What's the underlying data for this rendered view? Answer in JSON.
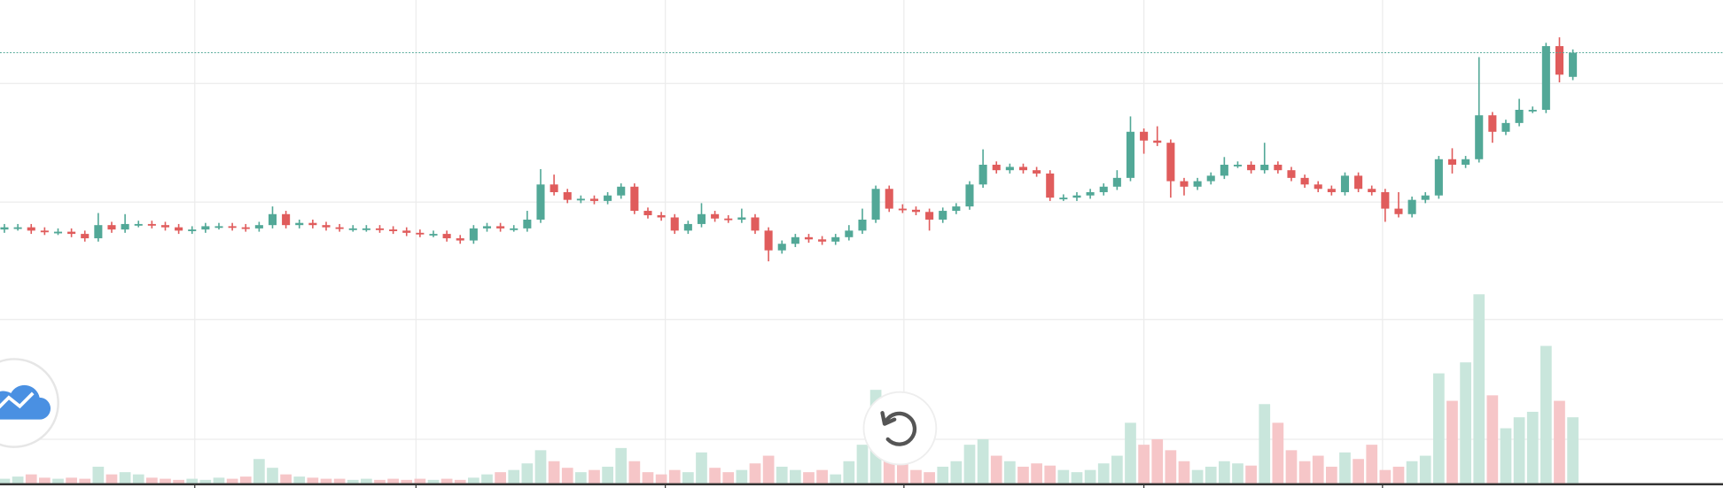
{
  "chart_data": {
    "type": "candlestick",
    "xlim": [
      -0.33,
      128.2
    ],
    "ylim": [
      -4.4,
      440
    ],
    "xticks": [
      14.2,
      30.7,
      49.3,
      67.1,
      85,
      102.8
    ],
    "yticks": [
      40,
      149,
      256,
      364
    ],
    "grid": true,
    "up_color": "#52a897",
    "down_color": "#e05c5c",
    "volume_up_color": "#c9e6dc",
    "volume_down_color": "#f6c6c8",
    "open": [
      231,
      233,
      233,
      230,
      229,
      229,
      227,
      223,
      235,
      231,
      236,
      236,
      235,
      233,
      230,
      231,
      234,
      234,
      233,
      232,
      235,
      245,
      235,
      237,
      235,
      233,
      232,
      232,
      232,
      231,
      230,
      228,
      227,
      227,
      223,
      221,
      232,
      234,
      232,
      232,
      240,
      272,
      265,
      258,
      259,
      257,
      262,
      270,
      248,
      244,
      242,
      230,
      236,
      245,
      241,
      240,
      242,
      230,
      212,
      218,
      224,
      222,
      220,
      224,
      230,
      240,
      268,
      250,
      249,
      247,
      240,
      248,
      252,
      272,
      290,
      285,
      288,
      285,
      282,
      260,
      260,
      262,
      265,
      270,
      278,
      320,
      312,
      310,
      275,
      270,
      275,
      280,
      290,
      290,
      285,
      290,
      285,
      278,
      272,
      268,
      265,
      280,
      268,
      265,
      250,
      245,
      258,
      262,
      295,
      290,
      295,
      335,
      320,
      328,
      340,
      340,
      398,
      370
    ],
    "high": [
      236,
      236,
      236,
      233,
      232,
      232,
      230,
      246,
      238,
      245,
      239,
      239,
      238,
      236,
      234,
      237,
      237,
      237,
      236,
      238,
      252,
      248,
      240,
      240,
      238,
      236,
      235,
      235,
      235,
      234,
      233,
      231,
      230,
      230,
      226,
      235,
      237,
      237,
      235,
      248,
      286,
      281,
      268,
      262,
      262,
      265,
      273,
      273,
      251,
      247,
      245,
      239,
      255,
      248,
      244,
      250,
      245,
      233,
      221,
      227,
      227,
      225,
      227,
      235,
      250,
      271,
      271,
      254,
      252,
      250,
      251,
      255,
      275,
      304,
      293,
      291,
      291,
      288,
      285,
      263,
      265,
      268,
      273,
      285,
      334,
      323,
      325,
      313,
      278,
      278,
      283,
      297,
      293,
      293,
      310,
      293,
      288,
      281,
      275,
      271,
      283,
      283,
      271,
      268,
      265,
      261,
      265,
      298,
      305,
      298,
      388,
      338,
      331,
      350,
      343,
      401,
      406,
      395
    ],
    "low": [
      228,
      230,
      227,
      226,
      226,
      224,
      220,
      220,
      228,
      228,
      233,
      232,
      230,
      227,
      227,
      228,
      231,
      230,
      229,
      229,
      232,
      232,
      232,
      232,
      230,
      229,
      229,
      229,
      228,
      227,
      225,
      224,
      224,
      220,
      218,
      218,
      229,
      229,
      229,
      229,
      237,
      262,
      255,
      255,
      254,
      254,
      259,
      245,
      241,
      239,
      227,
      227,
      233,
      238,
      237,
      237,
      227,
      202,
      209,
      215,
      219,
      217,
      217,
      221,
      227,
      237,
      247,
      246,
      244,
      230,
      237,
      245,
      249,
      269,
      282,
      282,
      282,
      279,
      257,
      257,
      257,
      259,
      262,
      267,
      275,
      300,
      307,
      260,
      262,
      267,
      272,
      277,
      287,
      282,
      282,
      282,
      275,
      269,
      265,
      262,
      262,
      265,
      262,
      238,
      242,
      242,
      255,
      259,
      282,
      287,
      292,
      310,
      317,
      325,
      337,
      337,
      365,
      367
    ],
    "close": [
      233,
      233,
      230,
      229,
      229,
      227,
      223,
      235,
      231,
      236,
      236,
      235,
      233,
      230,
      231,
      234,
      234,
      233,
      232,
      235,
      245,
      235,
      237,
      235,
      233,
      232,
      232,
      232,
      231,
      230,
      228,
      227,
      227,
      223,
      221,
      232,
      234,
      232,
      232,
      240,
      272,
      265,
      258,
      259,
      257,
      262,
      270,
      248,
      244,
      242,
      230,
      236,
      245,
      241,
      240,
      242,
      230,
      212,
      218,
      224,
      222,
      220,
      224,
      230,
      240,
      268,
      250,
      249,
      247,
      240,
      248,
      252,
      272,
      290,
      285,
      288,
      285,
      282,
      260,
      260,
      262,
      265,
      270,
      278,
      320,
      312,
      310,
      275,
      270,
      275,
      280,
      290,
      290,
      285,
      290,
      285,
      278,
      272,
      268,
      265,
      280,
      268,
      265,
      250,
      245,
      258,
      262,
      295,
      290,
      295,
      335,
      320,
      328,
      340,
      340,
      398,
      372,
      392
    ],
    "volume": [
      4,
      6,
      8,
      5,
      4,
      5,
      4,
      15,
      8,
      10,
      8,
      5,
      4,
      3,
      4,
      3,
      5,
      4,
      6,
      22,
      14,
      8,
      6,
      5,
      4,
      4,
      3,
      4,
      3,
      4,
      3,
      4,
      3,
      4,
      3,
      5,
      8,
      10,
      12,
      18,
      30,
      20,
      14,
      10,
      12,
      15,
      32,
      20,
      10,
      8,
      12,
      10,
      28,
      14,
      10,
      12,
      18,
      25,
      15,
      12,
      10,
      12,
      8,
      20,
      35,
      85,
      45,
      20,
      12,
      10,
      15,
      20,
      35,
      40,
      25,
      20,
      15,
      18,
      16,
      12,
      10,
      12,
      18,
      25,
      55,
      35,
      40,
      30,
      20,
      12,
      15,
      20,
      18,
      16,
      72,
      55,
      30,
      20,
      25,
      15,
      28,
      22,
      35,
      12,
      15,
      20,
      25,
      100,
      75,
      110,
      172,
      80,
      50,
      60,
      65,
      125,
      75,
      60
    ]
  }
}
